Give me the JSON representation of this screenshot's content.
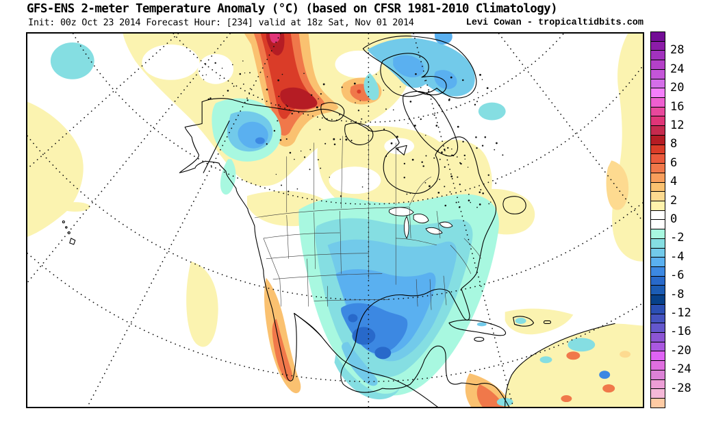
{
  "header": {
    "title": "GFS-ENS 2-meter Temperature Anomaly (°C) (based on CFSR 1981-2010 Climatology)",
    "init_line": "Init: 00z Oct 23 2014 Forecast Hour: [234] valid at 18z Sat, Nov 01 2014",
    "credit": "Levi Cowan - tropicaltidbits.com"
  },
  "colorbar": {
    "unit": "°C",
    "cells": [
      "#730D96",
      "#8C1CA8",
      "#A232BE",
      "#B440C8",
      "#C455D8",
      "#D46EE8",
      "#F47FFC",
      "#EE5FD0",
      "#E8489C",
      "#E03578",
      "#C62A4E",
      "#B51C24",
      "#DA3C28",
      "#EA5A3C",
      "#F0784A",
      "#F89E5C",
      "#FAC170",
      "#FDDA90",
      "#FFF2AC",
      "#FFFFFF",
      "#FFFFFF",
      "#A8F8E0",
      "#85DEE2",
      "#72CAEA",
      "#5AB0F0",
      "#3C88E2",
      "#2869CA",
      "#1C5CB4",
      "#07418A",
      "#2B4FB4",
      "#4553C0",
      "#6457CC",
      "#8C55D4",
      "#AA58E0",
      "#DF63F5",
      "#E06FE0",
      "#DC82D6",
      "#EC9ED6",
      "#F5B8D8",
      "#FFCBA4"
    ],
    "labels": [
      {
        "text": "28",
        "b": 2
      },
      {
        "text": "24",
        "b": 4
      },
      {
        "text": "20",
        "b": 6
      },
      {
        "text": "16",
        "b": 8
      },
      {
        "text": "12",
        "b": 10
      },
      {
        "text": "8",
        "b": 12
      },
      {
        "text": "6",
        "b": 14
      },
      {
        "text": "4",
        "b": 16
      },
      {
        "text": "2",
        "b": 18
      },
      {
        "text": "0",
        "b": 20
      },
      {
        "text": "-2",
        "b": 22
      },
      {
        "text": "-4",
        "b": 24
      },
      {
        "text": "-6",
        "b": 26
      },
      {
        "text": "-8",
        "b": 28
      },
      {
        "text": "-12",
        "b": 30
      },
      {
        "text": "-16",
        "b": 32
      },
      {
        "text": "-20",
        "b": 34
      },
      {
        "text": "-24",
        "b": 36
      },
      {
        "text": "-28",
        "b": 38
      }
    ]
  },
  "palette": {
    "warm_pale": "#FBF3B0",
    "warm_light": "#FDDA90",
    "warm_sand": "#FAC170",
    "orange": "#F0784A",
    "orange_deep": "#EA5A3C",
    "red": "#DA3C28",
    "red_dark": "#B51C24",
    "pink_red": "#E03578",
    "cold_pale": "#A8F8E0",
    "cold_cyan": "#85DEE2",
    "cold_sky": "#72CAEA",
    "cold_blue": "#5AB0F0",
    "cold_med": "#3C88E2",
    "cold_royal": "#2869CA",
    "white": "#FFFFFF",
    "coast": "#000000",
    "border_minor": "#3a3a3a",
    "graticule": "#111111"
  }
}
